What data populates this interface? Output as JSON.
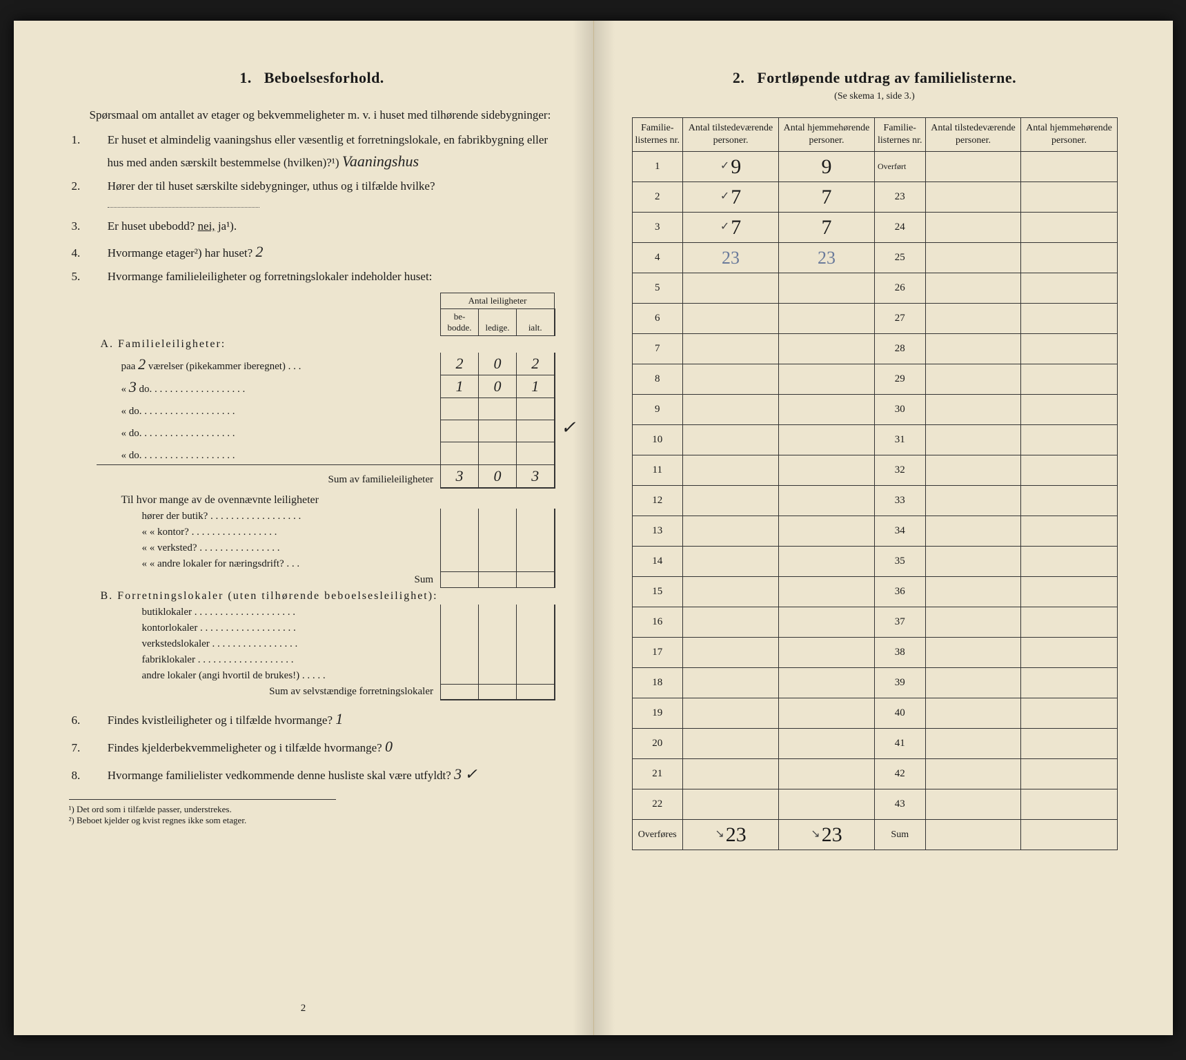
{
  "left": {
    "section_number": "1.",
    "section_title": "Beboelsesforhold.",
    "intro": "Spørsmaal om antallet av etager og bekvemmeligheter m. v. i huset med tilhørende sidebygninger:",
    "questions": {
      "q1": "Er huset et almindelig vaaningshus eller væsentlig et forretningslokale, en fabrikbygning eller hus med anden særskilt bestemmelse (hvilken)?¹)",
      "q1_answer": "Vaaningshus",
      "q2": "Hører der til huset særskilte sidebygninger, uthus og i tilfælde hvilke?",
      "q2_answer": "",
      "q3": "Er huset ubebodd?",
      "q3_nei": "nei,",
      "q3_ja": "ja¹).",
      "q4": "Hvormange etager²) har huset?",
      "q4_answer": "2",
      "q5": "Hvormange familieleiligheter og forretningslokaler indeholder huset:"
    },
    "table_header": {
      "group": "Antal leiligheter",
      "c1": "be-\nbodde.",
      "c2": "ledige.",
      "c3": "ialt."
    },
    "section_a": {
      "title": "A. Familieleiligheter:",
      "rows": [
        {
          "label_pre": "paa",
          "rooms": "2",
          "label_post": "værelser (pikekammer iberegnet) . . .",
          "bebodde": "2",
          "ledige": "0",
          "ialt": "2"
        },
        {
          "label_pre": "«",
          "rooms": "3",
          "label_post": "do.  . . . . . . . . . . . . . . . . . .",
          "bebodde": "1",
          "ledige": "0",
          "ialt": "1"
        },
        {
          "label_pre": "«",
          "rooms": "",
          "label_post": "do.  . . . . . . . . . . . . . . . . . .",
          "bebodde": "",
          "ledige": "",
          "ialt": ""
        },
        {
          "label_pre": "«",
          "rooms": "",
          "label_post": "do.  . . . . . . . . . . . . . . . . . .",
          "bebodde": "",
          "ledige": "",
          "ialt": ""
        },
        {
          "label_pre": "«",
          "rooms": "",
          "label_post": "do.  . . . . . . . . . . . . . . . . . .",
          "bebodde": "",
          "ledige": "",
          "ialt": ""
        }
      ],
      "sum_label": "Sum av familieleiligheter",
      "sum": {
        "bebodde": "3",
        "ledige": "0",
        "ialt": "3"
      },
      "sub_q": "Til hvor mange av de ovennævnte leiligheter",
      "sub_rows": [
        "hører der butik? . . . . . . . . . . . . . . . . . .",
        "«     « kontor? . . . . . . . . . . . . . . . . .",
        "«     « verksted? . . . . . . . . . . . . . . . .",
        "«     « andre lokaler for næringsdrift? . . ."
      ],
      "sub_sum": "Sum"
    },
    "section_b": {
      "title": "B. Forretningslokaler (uten tilhørende beboelsesleilighet):",
      "rows": [
        "butiklokaler . . . . . . . . . . . . . . . . . . . .",
        "kontorlokaler . . . . . . . . . . . . . . . . . . .",
        "verkstedslokaler . . . . . . . . . . . . . . . . .",
        "fabriklokaler . . . . . . . . . . . . . . . . . . .",
        "andre lokaler (angi hvortil de brukes!) . . . . ."
      ],
      "sum_label": "Sum av selvstændige forretningslokaler"
    },
    "q6": "Findes kvistleiligheter og i tilfælde hvormange?",
    "q6_answer": "1",
    "q7": "Findes kjelderbekvemmeligheter og i tilfælde hvormange?",
    "q7_answer": "0",
    "q8": "Hvormange familielister vedkommende denne husliste skal være utfyldt?",
    "q8_answer": "3",
    "footnotes": [
      "¹) Det ord som i tilfælde passer, understrekes.",
      "²) Beboet kjelder og kvist regnes ikke som etager."
    ],
    "page_no": "2"
  },
  "right": {
    "section_number": "2.",
    "section_title": "Fortløpende utdrag av familielisterne.",
    "subtitle": "(Se skema 1, side 3.)",
    "headers": {
      "nr": "Familie-\nlisternes\nnr.",
      "tilstede": "Antal\ntilstedeværende\npersoner.",
      "hjemme": "Antal\nhjemmehørende\npersoner."
    },
    "overfort_label": "Overført",
    "left_rows": [
      {
        "nr": "1",
        "t": "9",
        "h": "9",
        "mark": "✓"
      },
      {
        "nr": "2",
        "t": "7",
        "h": "7",
        "mark": "✓"
      },
      {
        "nr": "3",
        "t": "7",
        "h": "7",
        "mark": "✓"
      },
      {
        "nr": "4",
        "t": "23",
        "h": "23",
        "mark": "",
        "total": true
      },
      {
        "nr": "5"
      },
      {
        "nr": "6"
      },
      {
        "nr": "7"
      },
      {
        "nr": "8"
      },
      {
        "nr": "9"
      },
      {
        "nr": "10"
      },
      {
        "nr": "11"
      },
      {
        "nr": "12"
      },
      {
        "nr": "13"
      },
      {
        "nr": "14"
      },
      {
        "nr": "15"
      },
      {
        "nr": "16"
      },
      {
        "nr": "17"
      },
      {
        "nr": "18"
      },
      {
        "nr": "19"
      },
      {
        "nr": "20"
      },
      {
        "nr": "21"
      },
      {
        "nr": "22"
      }
    ],
    "right_nrs": [
      "23",
      "24",
      "25",
      "26",
      "27",
      "28",
      "29",
      "30",
      "31",
      "32",
      "33",
      "34",
      "35",
      "36",
      "37",
      "38",
      "39",
      "40",
      "41",
      "42",
      "43"
    ],
    "footer": {
      "left_label": "Overføres",
      "left_t": "23",
      "left_h": "23",
      "right_label": "Sum"
    },
    "colors": {
      "paper": "#ede5cf",
      "ink": "#1a1a1a",
      "line": "#333333",
      "hand_blue": "#6a7a9a"
    }
  }
}
